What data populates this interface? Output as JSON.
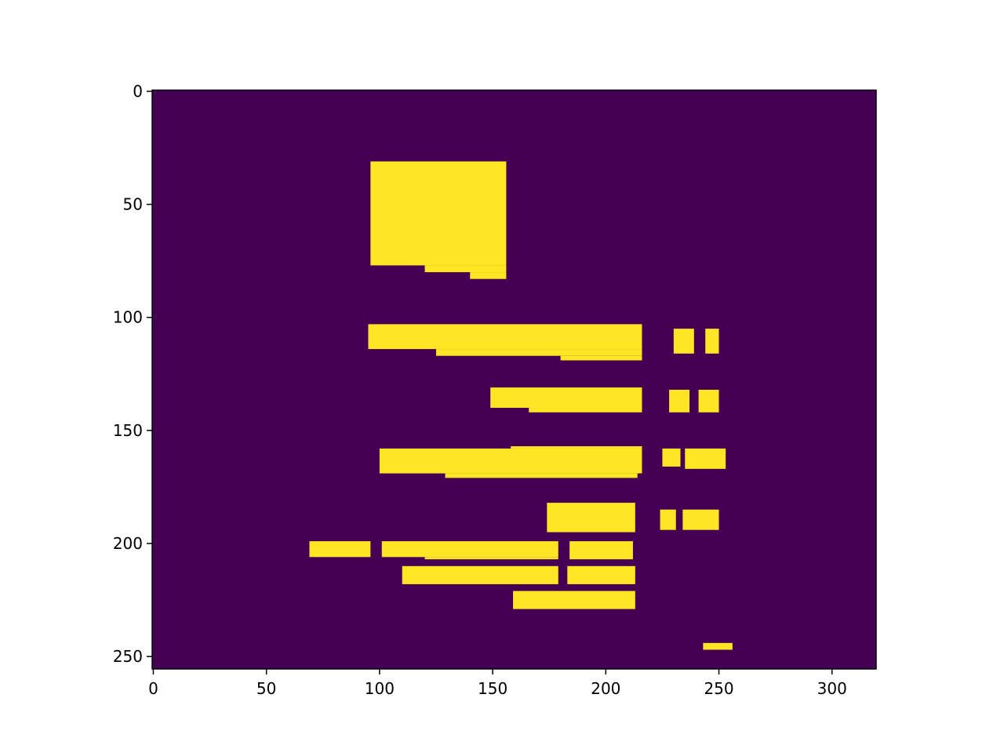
{
  "chart_data": {
    "type": "mask",
    "xlim": [
      -0.5,
      319.5
    ],
    "ylim": [
      255.5,
      -0.5
    ],
    "xticks": [
      0,
      50,
      100,
      150,
      200,
      250,
      300
    ],
    "yticks": [
      0,
      50,
      100,
      150,
      200,
      250
    ],
    "background_color": "#440154",
    "color": "#fde725",
    "regions": [
      [
        96,
        156,
        31,
        77
      ],
      [
        120,
        156,
        77,
        80
      ],
      [
        140,
        156,
        80,
        83
      ],
      [
        95,
        216,
        103,
        114
      ],
      [
        125,
        216,
        114,
        117
      ],
      [
        180,
        216,
        117,
        119
      ],
      [
        230,
        239,
        105,
        116
      ],
      [
        244,
        250,
        105,
        116
      ],
      [
        149,
        216,
        131,
        140
      ],
      [
        166,
        216,
        140,
        142
      ],
      [
        228,
        237,
        132,
        142
      ],
      [
        241,
        250,
        132,
        142
      ],
      [
        158,
        216,
        157,
        158
      ],
      [
        100,
        216,
        158,
        169
      ],
      [
        129,
        214,
        169,
        171
      ],
      [
        225,
        233,
        158,
        166
      ],
      [
        235,
        253,
        158,
        167
      ],
      [
        174,
        213,
        182,
        195
      ],
      [
        224,
        231,
        185,
        194
      ],
      [
        234,
        250,
        185,
        194
      ],
      [
        69,
        96,
        199,
        206
      ],
      [
        101,
        179,
        199,
        206
      ],
      [
        120,
        179,
        206,
        207
      ],
      [
        184,
        212,
        199,
        207
      ],
      [
        110,
        179,
        210,
        218
      ],
      [
        183,
        213,
        210,
        218
      ],
      [
        159,
        213,
        221,
        229
      ],
      [
        243,
        256,
        244,
        247
      ]
    ]
  }
}
